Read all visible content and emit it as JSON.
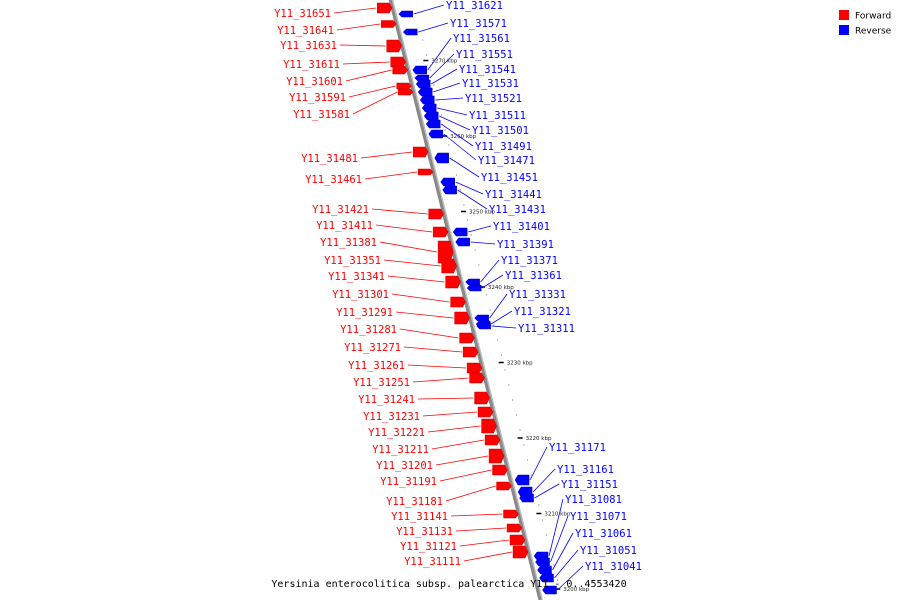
{
  "title": "Yersinia enterocolitica subsp. palearctica Y11 - 0..4553420",
  "legend": [
    {
      "label": "Forward",
      "color": "#ff0000"
    },
    {
      "label": "Reverse",
      "color": "#0000ff"
    }
  ],
  "colors": {
    "forward": "#ff0000",
    "reverse": "#0000ff",
    "backbone": "#888888"
  },
  "chart_data": {
    "type": "linear-genome-map",
    "unit": "kbp",
    "ticks": [
      {
        "pos": 3270,
        "label": "3270 kbp"
      },
      {
        "pos": 3260,
        "label": "3260 kbp"
      },
      {
        "pos": 3250,
        "label": "3250 kbp"
      },
      {
        "pos": 3240,
        "label": "3240 kbp"
      },
      {
        "pos": 3230,
        "label": "3230 kbp"
      },
      {
        "pos": 3220,
        "label": "3220 kbp"
      },
      {
        "pos": 3210,
        "label": "3210 kbp"
      },
      {
        "pos": 3200,
        "label": "3200 kbp"
      }
    ],
    "forward_genes": [
      {
        "label": "Y11_31651"
      },
      {
        "label": "Y11_31641"
      },
      {
        "label": "Y11_31631"
      },
      {
        "label": "Y11_31611"
      },
      {
        "label": "Y11_31601"
      },
      {
        "label": "Y11_31591"
      },
      {
        "label": "Y11_31581"
      },
      {
        "label": "Y11_31481"
      },
      {
        "label": "Y11_31461"
      },
      {
        "label": "Y11_31421"
      },
      {
        "label": "Y11_31411"
      },
      {
        "label": "Y11_31381"
      },
      {
        "label": "Y11_31351"
      },
      {
        "label": "Y11_31341"
      },
      {
        "label": "Y11_31301"
      },
      {
        "label": "Y11_31291"
      },
      {
        "label": "Y11_31281"
      },
      {
        "label": "Y11_31271"
      },
      {
        "label": "Y11_31261"
      },
      {
        "label": "Y11_31251"
      },
      {
        "label": "Y11_31241"
      },
      {
        "label": "Y11_31231"
      },
      {
        "label": "Y11_31221"
      },
      {
        "label": "Y11_31211"
      },
      {
        "label": "Y11_31201"
      },
      {
        "label": "Y11_31191"
      },
      {
        "label": "Y11_31181"
      },
      {
        "label": "Y11_31141"
      },
      {
        "label": "Y11_31131"
      },
      {
        "label": "Y11_31121"
      },
      {
        "label": "Y11_31111"
      }
    ],
    "reverse_genes": [
      {
        "label": "Y11_31621"
      },
      {
        "label": "Y11_31571"
      },
      {
        "label": "Y11_31561"
      },
      {
        "label": "Y11_31551"
      },
      {
        "label": "Y11_31541"
      },
      {
        "label": "Y11_31531"
      },
      {
        "label": "Y11_31521"
      },
      {
        "label": "Y11_31511"
      },
      {
        "label": "Y11_31501"
      },
      {
        "label": "Y11_31491"
      },
      {
        "label": "Y11_31471"
      },
      {
        "label": "Y11_31451"
      },
      {
        "label": "Y11_31441"
      },
      {
        "label": "Y11_31431"
      },
      {
        "label": "Y11_31401"
      },
      {
        "label": "Y11_31391"
      },
      {
        "label": "Y11_31371"
      },
      {
        "label": "Y11_31361"
      },
      {
        "label": "Y11_31331"
      },
      {
        "label": "Y11_31321"
      },
      {
        "label": "Y11_31311"
      },
      {
        "label": "Y11_31171"
      },
      {
        "label": "Y11_31161"
      },
      {
        "label": "Y11_31151"
      },
      {
        "label": "Y11_31081"
      },
      {
        "label": "Y11_31071"
      },
      {
        "label": "Y11_31061"
      },
      {
        "label": "Y11_31051"
      },
      {
        "label": "Y11_31041"
      }
    ]
  }
}
